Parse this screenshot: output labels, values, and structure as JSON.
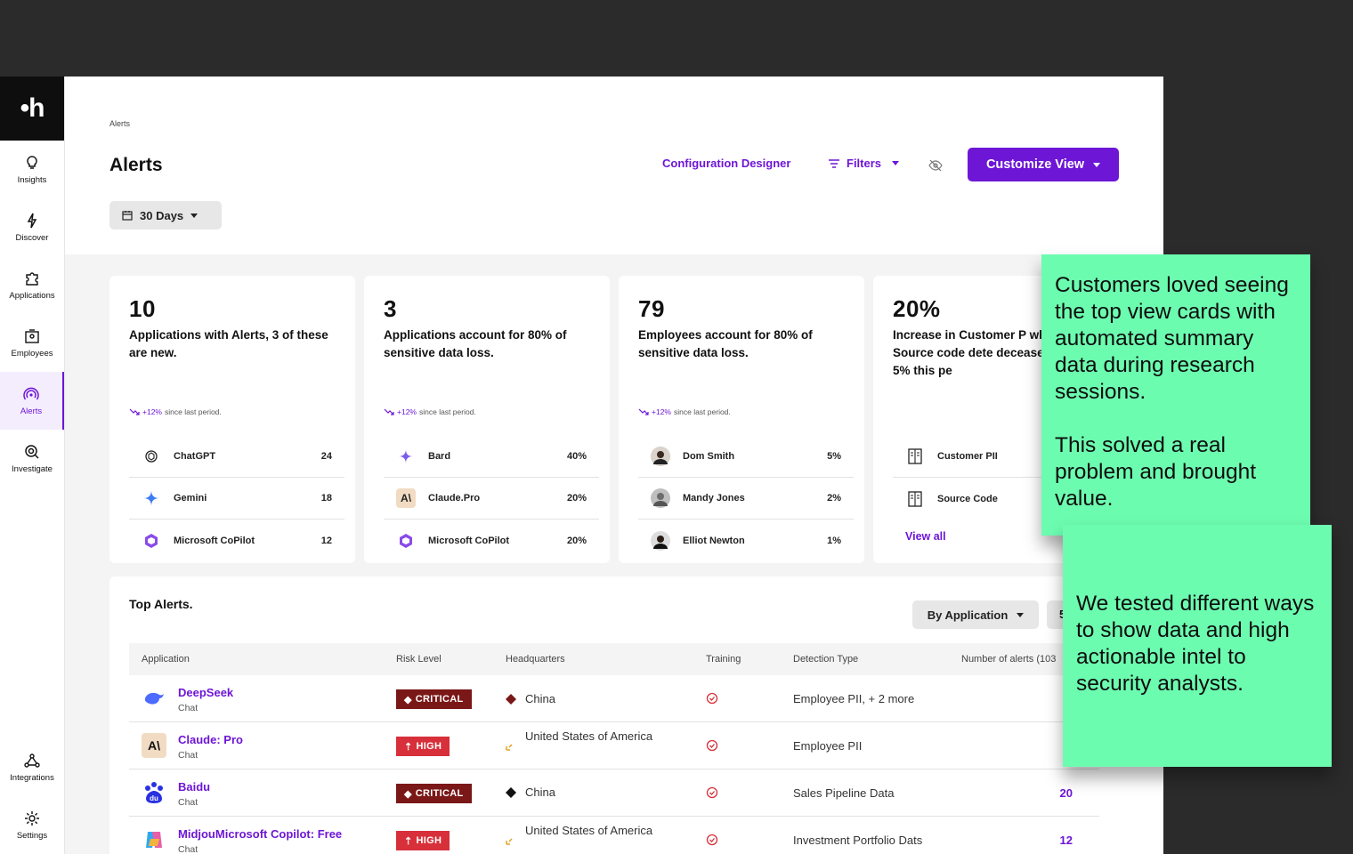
{
  "sidebar": {
    "logo": "•h",
    "items": [
      {
        "label": "Insights"
      },
      {
        "label": "Discover"
      },
      {
        "label": "Applications"
      },
      {
        "label": "Employees"
      },
      {
        "label": "Alerts"
      },
      {
        "label": "Investigate"
      }
    ],
    "bottom": [
      {
        "label": "Integrations"
      },
      {
        "label": "Settings"
      }
    ],
    "active": "Alerts",
    "accent": "#6d16d6"
  },
  "header": {
    "breadcrumb": "Alerts",
    "title": "Alerts",
    "range": "30 Days",
    "config_link": "Configuration Designer",
    "filters": "Filters",
    "customize": "Customize View"
  },
  "cards": [
    {
      "big": "10",
      "desc": "Applications with Alerts, 3 of these are new.",
      "trend_value": "+12%",
      "trend_label": "since last period.",
      "rows": [
        {
          "label": "ChatGPT",
          "value": "24"
        },
        {
          "label": "Gemini",
          "value": "18"
        },
        {
          "label": "Microsoft CoPilot",
          "value": "12"
        }
      ]
    },
    {
      "big": "3",
      "desc": "Applications account for 80% of sensitive data loss.",
      "trend_value": "+12%",
      "trend_label": "since last period.",
      "rows": [
        {
          "label": "Bard",
          "value": "40%"
        },
        {
          "label": "Claude.Pro",
          "value": "20%"
        },
        {
          "label": "Microsoft CoPilot",
          "value": "20%"
        }
      ]
    },
    {
      "big": "79",
      "desc": "Employees account for 80% of sensitive data loss.",
      "trend_value": "+12%",
      "trend_label": "since last period.",
      "rows": [
        {
          "label": "Dom Smith",
          "value": "5%"
        },
        {
          "label": "Mandy Jones",
          "value": "2%"
        },
        {
          "label": "Elliot Newton",
          "value": "1%"
        }
      ]
    },
    {
      "big": "20%",
      "desc": "Increase in Customer P while Source code dete deceased by 5% this pe",
      "rows": [
        {
          "label": "Customer PII",
          "value": ""
        },
        {
          "label": "Source Code",
          "value": ""
        }
      ],
      "view_all": "View all"
    }
  ],
  "top_alerts": {
    "title": "Top Alerts.",
    "group_by": "By Application",
    "second_btn": "5",
    "columns": [
      "Application",
      "Risk Level",
      "Headquarters",
      "Training",
      "Detection Type",
      "Number of alerts (103"
    ],
    "rows": [
      {
        "app": "DeepSeek",
        "type": "Chat",
        "risk": "CRITICAL",
        "hq": "China",
        "detection": "Employee PII, + 2 more",
        "count": ""
      },
      {
        "app": "Claude: Pro",
        "type": "Chat",
        "risk": "HIGH",
        "hq": "United States of America",
        "detection": "Employee PII",
        "count": ""
      },
      {
        "app": "Baidu",
        "type": "Chat",
        "risk": "CRITICAL",
        "hq": "China",
        "detection": "Sales Pipeline Data",
        "count": "20"
      },
      {
        "app": "MidjouMicrosoft Copilot: Free",
        "type": "Chat",
        "risk": "HIGH",
        "hq": "United States of America",
        "detection": "Investment Portfolio Dats",
        "count": "12"
      }
    ]
  },
  "notes": {
    "note1_p1": "Customers loved seeing the top view cards with automated summary data during research sessions.",
    "note1_p2": "This solved a real problem and brought value.",
    "note2": "We tested different ways to show data and high actionable intel to security analysts.",
    "color": "#6cfcb0"
  }
}
